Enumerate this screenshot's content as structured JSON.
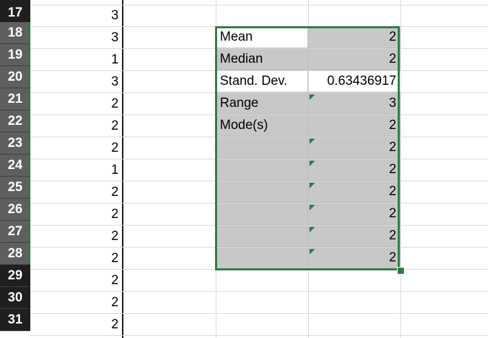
{
  "rows": [
    {
      "n": "17",
      "value": "3"
    },
    {
      "n": "18",
      "value": "3"
    },
    {
      "n": "19",
      "value": "1"
    },
    {
      "n": "20",
      "value": "3"
    },
    {
      "n": "21",
      "value": "2"
    },
    {
      "n": "22",
      "value": "2"
    },
    {
      "n": "23",
      "value": "2"
    },
    {
      "n": "24",
      "value": "1"
    },
    {
      "n": "25",
      "value": "2"
    },
    {
      "n": "26",
      "value": "2"
    },
    {
      "n": "27",
      "value": "2"
    },
    {
      "n": "28",
      "value": "2"
    },
    {
      "n": "29",
      "value": "2"
    },
    {
      "n": "30",
      "value": "2"
    },
    {
      "n": "31",
      "value": "2"
    }
  ],
  "stats": [
    {
      "label": "Mean",
      "value": "2",
      "flag": false
    },
    {
      "label": "Median",
      "value": "2",
      "flag": false
    },
    {
      "label": "Stand. Dev.",
      "value": "0.63436917",
      "flag": false
    },
    {
      "label": "Range",
      "value": "3",
      "flag": true
    },
    {
      "label": "Mode(s)",
      "value": "2",
      "flag": false
    },
    {
      "label": "",
      "value": "2",
      "flag": true
    },
    {
      "label": "",
      "value": "2",
      "flag": true
    },
    {
      "label": "",
      "value": "2",
      "flag": true
    },
    {
      "label": "",
      "value": "2",
      "flag": true
    },
    {
      "label": "",
      "value": "2",
      "flag": true
    },
    {
      "label": "",
      "value": "2",
      "flag": true
    }
  ],
  "colors": {
    "selection": "#2f7a45",
    "selected_fill": "#c8c8c8",
    "row_header": "#5f5f5f",
    "row_header_dark": "#1f1f1f",
    "grid": "#d9d9d9"
  }
}
